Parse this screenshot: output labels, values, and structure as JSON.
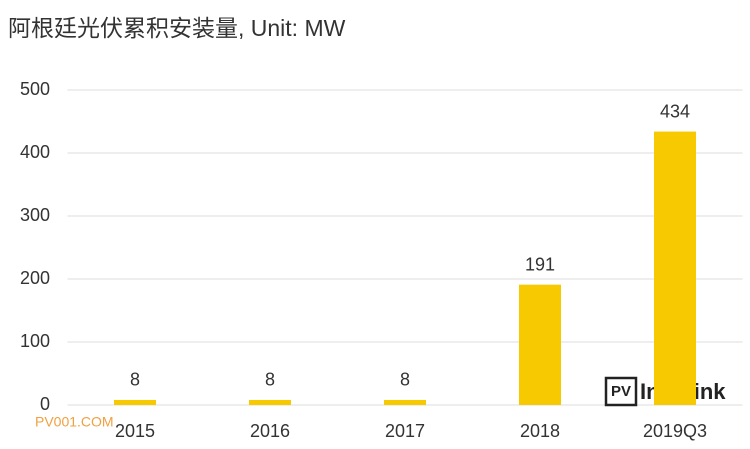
{
  "chart_data": {
    "type": "bar",
    "title": "阿根廷光伏累积安装量, Unit: MW",
    "categories": [
      "2015",
      "2016",
      "2017",
      "2018",
      "2019Q3"
    ],
    "values": [
      8,
      8,
      8,
      191,
      434
    ],
    "color": "#f7c900",
    "ylim": [
      0,
      500
    ],
    "yticks": [
      0,
      100,
      200,
      300,
      400,
      500
    ],
    "grid": true,
    "annotations": [
      "PV001.COM",
      "PV",
      "InfoLink"
    ]
  }
}
